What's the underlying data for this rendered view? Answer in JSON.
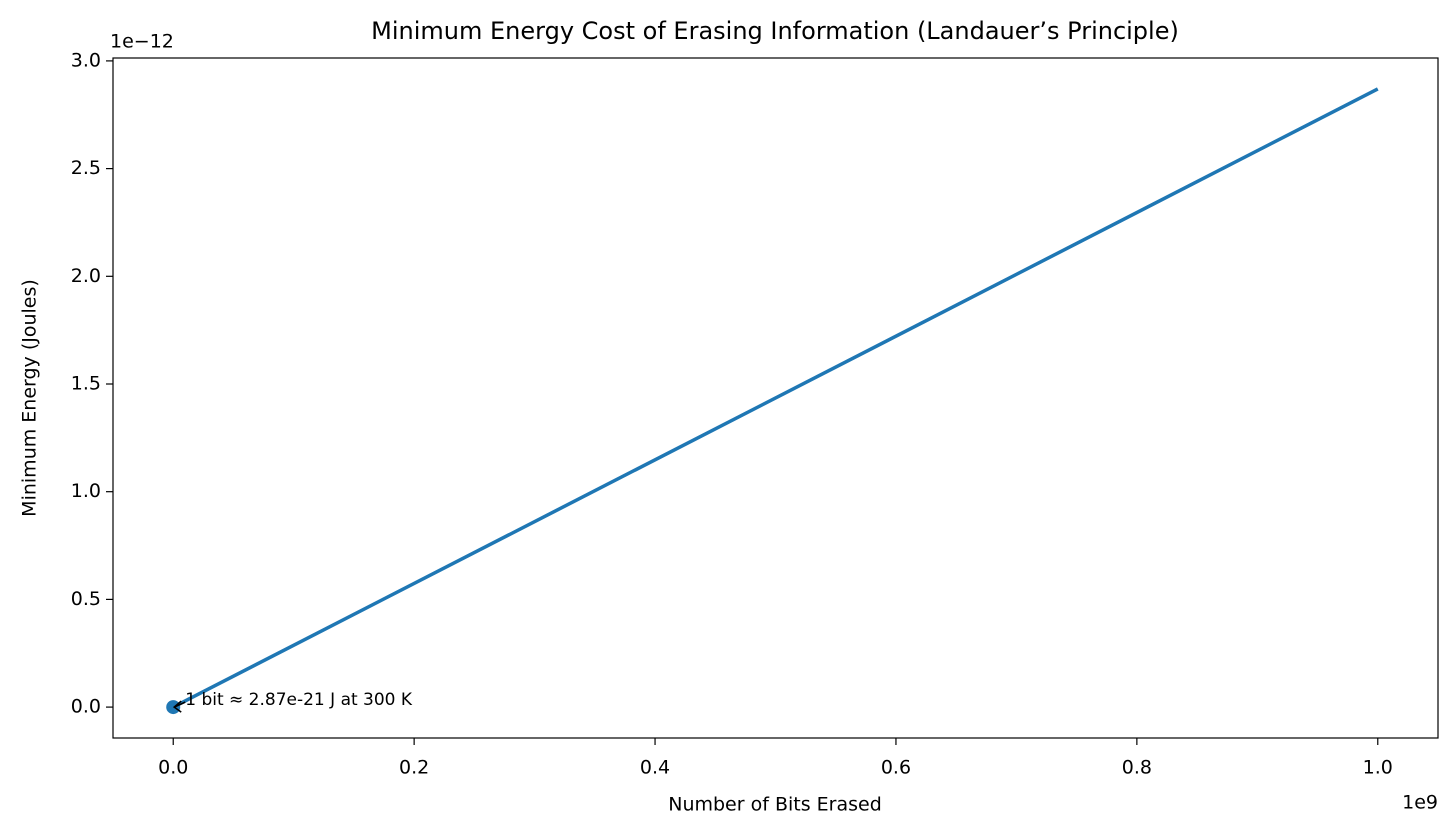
{
  "chart_data": {
    "type": "line",
    "title": "Minimum Energy Cost of Erasing Information (Landauer’s Principle)",
    "x_label": "Number of Bits Erased",
    "y_label": "Minimum Energy (Joules)",
    "x_offset_label": "1e9",
    "y_offset_label": "1e−12",
    "x": [
      1,
      1000000000
    ],
    "values": [
      2.87e-21,
      2.87e-12
    ],
    "color": "#1f77b4",
    "marker": {
      "x": [
        1
      ],
      "values": [
        2.87e-21
      ]
    },
    "annotation": "1 bit ≈ 2.87e-21 J at 300 K",
    "xlim": [
      -50000000,
      1050000000
    ],
    "ylim": [
      -1.435e-13,
      3.0135e-12
    ],
    "xticks": [
      {
        "value": 0,
        "label": "0.0"
      },
      {
        "value": 200000000,
        "label": "0.2"
      },
      {
        "value": 400000000,
        "label": "0.4"
      },
      {
        "value": 600000000,
        "label": "0.6"
      },
      {
        "value": 800000000,
        "label": "0.8"
      },
      {
        "value": 1000000000,
        "label": "1.0"
      }
    ],
    "yticks": [
      {
        "value": 0,
        "label": "0.0"
      },
      {
        "value": 5e-13,
        "label": "0.5"
      },
      {
        "value": 1e-12,
        "label": "1.0"
      },
      {
        "value": 1.5e-12,
        "label": "1.5"
      },
      {
        "value": 2e-12,
        "label": "2.0"
      },
      {
        "value": 2.5e-12,
        "label": "2.5"
      },
      {
        "value": 3e-12,
        "label": "3.0"
      }
    ],
    "grid": false
  }
}
